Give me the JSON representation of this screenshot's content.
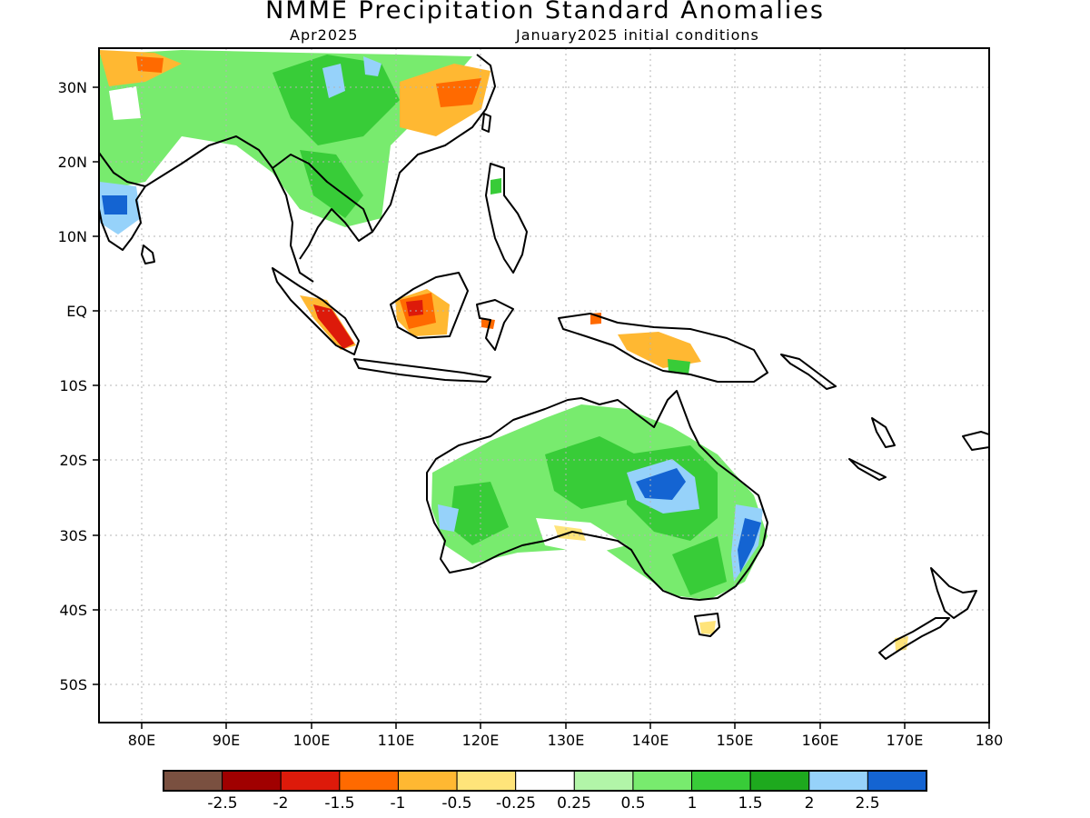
{
  "title": "NMME Precipitation Standard Anomalies",
  "target_month": "Apr2025",
  "init_conditions": "January2025 initial conditions",
  "lon_labels": [
    "80E",
    "90E",
    "100E",
    "110E",
    "120E",
    "130E",
    "140E",
    "150E",
    "160E",
    "170E",
    "180"
  ],
  "lat_labels": [
    "30N",
    "20N",
    "10N",
    "EQ",
    "10S",
    "20S",
    "30S",
    "40S",
    "50S"
  ],
  "colorbar": {
    "colors": [
      "#7a5040",
      "#a00000",
      "#dd1a0a",
      "#ff6a00",
      "#ffb832",
      "#ffe47a",
      "#ffffff",
      "#b2f5a8",
      "#78eb6e",
      "#38cc38",
      "#1ea91e",
      "#96d2fa",
      "#1464d2"
    ],
    "labels": [
      "-2.5",
      "-2",
      "-1.5",
      "-1",
      "-0.5",
      "-0.25",
      "0.25",
      "0.5",
      "1",
      "1.5",
      "2",
      "2.5"
    ]
  },
  "map": {
    "lon_range": [
      75,
      180
    ],
    "lat_range": [
      -55,
      35
    ],
    "grid": "dotted",
    "land_outline_color": "#000000"
  }
}
